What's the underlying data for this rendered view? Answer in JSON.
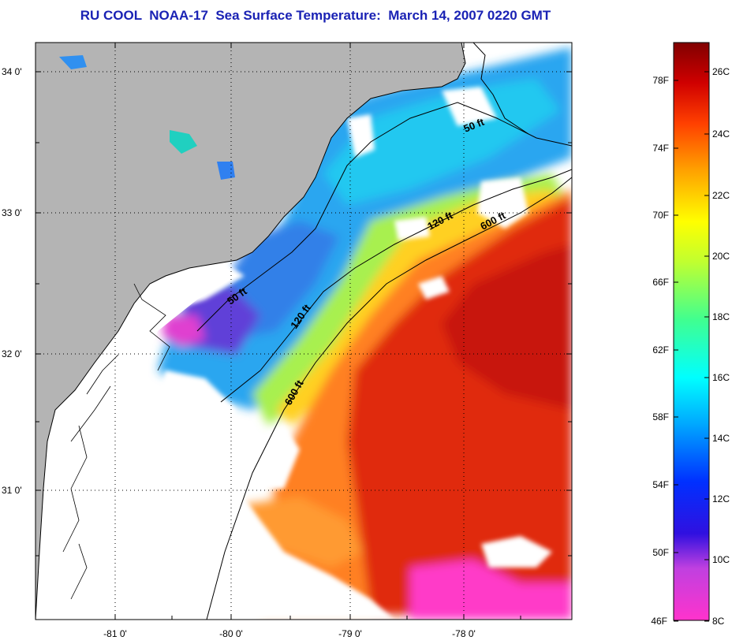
{
  "title": "RU COOL  NOAA-17  Sea Surface Temperature:  March 14, 2007 0220 GMT",
  "map": {
    "lat_ticks": [
      "34 0'",
      "33 0'",
      "32 0'",
      "31 0'"
    ],
    "lon_ticks": [
      "-81 0'",
      "-80 0'",
      "-79 0'",
      "-78 0'"
    ],
    "contour_labels": [
      "50 ft",
      "120 ft",
      "600 ft",
      "50 ft",
      "120 ft",
      "600 ft"
    ],
    "colors": {
      "land": "#b4b4b4",
      "cloud": "#ffffff",
      "gulf_stream": "#e02a10",
      "shelf_cold": "#2aa6f0"
    }
  },
  "colorbar": {
    "fahrenheit": [
      "78F",
      "74F",
      "70F",
      "66F",
      "62F",
      "58F",
      "54F",
      "50F",
      "46F"
    ],
    "celsius": [
      "26C",
      "24C",
      "22C",
      "20C",
      "18C",
      "16C",
      "14C",
      "12C",
      "10C",
      "8C"
    ]
  }
}
